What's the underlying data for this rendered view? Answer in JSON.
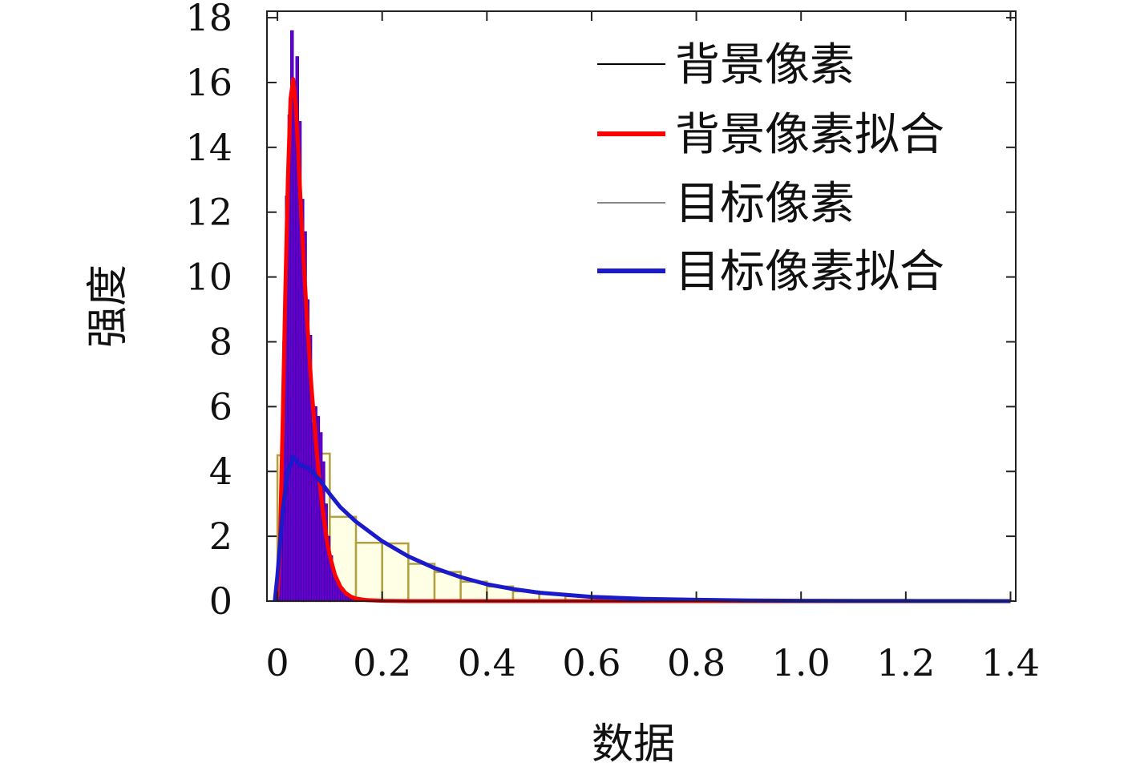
{
  "chart_data": {
    "type": "histogram",
    "xlabel": "数据",
    "ylabel": "强度",
    "xlim": [
      -0.02,
      1.41
    ],
    "ylim": [
      0,
      18.2
    ],
    "xticks": [
      "0",
      "0.2",
      "0.4",
      "0.6",
      "0.8",
      "1.0",
      "1.2",
      "1.4"
    ],
    "xtick_values": [
      0,
      0.2,
      0.4,
      0.6,
      0.8,
      1.0,
      1.2,
      1.4
    ],
    "yticks": [
      "0",
      "2",
      "4",
      "6",
      "8",
      "10",
      "12",
      "14",
      "16",
      "18"
    ],
    "ytick_values": [
      0,
      2,
      4,
      6,
      8,
      10,
      12,
      14,
      16,
      18
    ],
    "grid": false,
    "legend_position": "top-right",
    "legend": [
      {
        "label": "背景像素",
        "color": "#000000",
        "style": "thin-line"
      },
      {
        "label": "背景像素拟合",
        "color": "#ff0000",
        "style": "thick-line"
      },
      {
        "label": "目标像素",
        "color": "#888888",
        "style": "thin-line"
      },
      {
        "label": "目标像素拟合",
        "color": "#1a1acc",
        "style": "thick-line"
      }
    ],
    "background_hist": {
      "name": "背景像素",
      "bin_width": 0.005,
      "fill": "#6a00c8",
      "x": [
        0.0,
        0.005,
        0.01,
        0.015,
        0.02,
        0.025,
        0.03,
        0.035,
        0.04,
        0.045,
        0.05,
        0.055,
        0.06,
        0.065,
        0.07,
        0.075,
        0.08,
        0.085,
        0.09,
        0.095,
        0.1,
        0.105,
        0.11,
        0.115,
        0.12,
        0.125,
        0.13,
        0.135,
        0.14,
        0.145,
        0.15,
        0.155,
        0.16,
        0.165,
        0.17,
        0.175,
        0.18
      ],
      "values": [
        0.5,
        3.0,
        8.0,
        12.5,
        15.0,
        17.6,
        15.8,
        16.8,
        14.8,
        12.4,
        11.4,
        9.3,
        8.2,
        5.5,
        6.0,
        5.7,
        5.2,
        4.3,
        3.0,
        2.0,
        1.4,
        0.9,
        0.6,
        0.45,
        0.3,
        0.2,
        0.14,
        0.1,
        0.07,
        0.05,
        0.04,
        0.03,
        0.02,
        0.015,
        0.01,
        0.008,
        0.005
      ]
    },
    "background_fit": {
      "name": "背景像素拟合",
      "color": "#ff0000",
      "x": [
        -0.003,
        0.0,
        0.005,
        0.01,
        0.015,
        0.02,
        0.025,
        0.03,
        0.035,
        0.04,
        0.045,
        0.05,
        0.055,
        0.06,
        0.065,
        0.07,
        0.075,
        0.08,
        0.085,
        0.09,
        0.095,
        0.1,
        0.11,
        0.12,
        0.13,
        0.14,
        0.15,
        0.17,
        0.2,
        0.25,
        0.3,
        0.4,
        0.6,
        0.8,
        1.0,
        1.2,
        1.4
      ],
      "y": [
        0.0,
        0.2,
        1.8,
        5.5,
        9.5,
        13.0,
        15.5,
        16.1,
        15.3,
        13.8,
        12.0,
        10.5,
        9.1,
        7.8,
        6.6,
        5.6,
        4.6,
        3.8,
        3.0,
        2.4,
        1.8,
        1.4,
        0.8,
        0.45,
        0.25,
        0.14,
        0.08,
        0.03,
        0.01,
        0.0,
        0.0,
        0.0,
        0.0,
        0.0,
        0.0,
        0.0,
        0.0
      ]
    },
    "target_hist": {
      "name": "目标像素",
      "bin_width": 0.05,
      "edge": "#b2a040",
      "fill": "#ffffe6",
      "x": [
        0.0,
        0.05,
        0.1,
        0.15,
        0.2,
        0.25,
        0.3,
        0.35,
        0.4,
        0.45,
        0.5,
        0.55,
        0.6,
        0.65,
        0.7,
        0.75,
        0.8,
        0.85,
        0.9,
        0.95,
        1.0,
        1.05,
        1.1,
        1.15,
        1.2,
        1.25,
        1.3,
        1.35
      ],
      "values": [
        4.5,
        4.55,
        2.6,
        1.8,
        1.78,
        1.15,
        0.9,
        0.6,
        0.45,
        0.3,
        0.22,
        0.15,
        0.12,
        0.08,
        0.07,
        0.05,
        0.04,
        0.03,
        0.02,
        0.02,
        0.015,
        0.01,
        0.01,
        0.008,
        0.006,
        0.005,
        0.004,
        0.003
      ]
    },
    "target_fit": {
      "name": "目标像素拟合",
      "color": "#1a1acc",
      "x": [
        -0.005,
        0.0,
        0.01,
        0.02,
        0.03,
        0.04,
        0.05,
        0.06,
        0.08,
        0.1,
        0.12,
        0.15,
        0.2,
        0.25,
        0.3,
        0.35,
        0.4,
        0.45,
        0.5,
        0.6,
        0.7,
        0.8,
        0.9,
        1.0,
        1.1,
        1.2,
        1.3,
        1.4
      ],
      "y": [
        0.0,
        0.8,
        2.8,
        4.0,
        4.45,
        4.25,
        4.15,
        4.1,
        3.75,
        3.3,
        2.9,
        2.45,
        1.85,
        1.38,
        1.02,
        0.74,
        0.52,
        0.37,
        0.26,
        0.13,
        0.07,
        0.04,
        0.02,
        0.01,
        0.006,
        0.004,
        0.002,
        0.001
      ]
    }
  }
}
